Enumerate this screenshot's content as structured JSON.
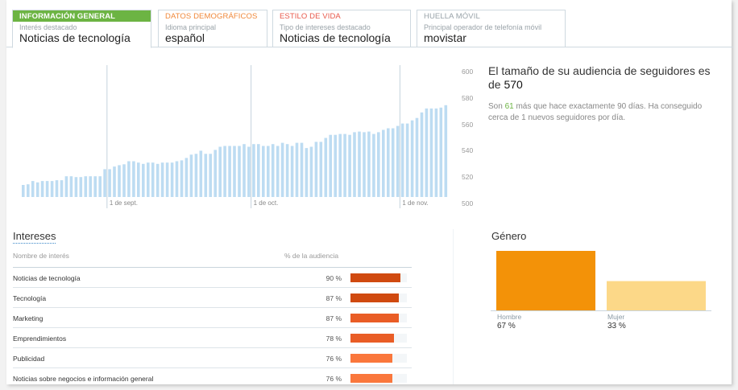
{
  "tabs": [
    {
      "header": "INFORMACIÓN GENERAL",
      "sub": "Interés destacado",
      "value": "Noticias de tecnología",
      "color": "#ffffff"
    },
    {
      "header": "DATOS DEMOGRÁFICOS",
      "sub": "Idioma principal",
      "value": "español",
      "color": "#f0883a"
    },
    {
      "header": "ESTILO DE VIDA",
      "sub": "Tipo de intereses destacado",
      "value": "Noticias de tecnología",
      "color": "#e8584a"
    },
    {
      "header": "HUELLA MÓVIL",
      "sub": "Principal operador de telefonía móvil",
      "value": "movistar",
      "color": "#99a3a9"
    }
  ],
  "followers": {
    "title": "El tamaño de su audiencia de seguidores es de ",
    "count": "570",
    "sub_pre": "Son ",
    "sub_num": "61",
    "sub_post": " más que hace exactamente 90 días. Ha conseguido cerca de 1 nuevos seguidores por día."
  },
  "chart_data": [
    {
      "type": "bar",
      "title": "",
      "ylim": [
        500,
        600
      ],
      "yticks": [
        "600",
        "580",
        "560",
        "540",
        "520",
        "500"
      ],
      "xticks": [
        {
          "label": "1 de sept.",
          "index": 17
        },
        {
          "label": "1 de oct.",
          "index": 47
        },
        {
          "label": "1 de nov.",
          "index": 78
        }
      ],
      "color": "#bddcf2",
      "values": [
        514,
        514.5,
        517,
        516,
        517,
        517,
        517,
        517.6,
        517.6,
        520.6,
        520.6,
        520,
        520,
        520.6,
        520.6,
        520.6,
        520.6,
        526,
        526,
        528,
        529,
        529.7,
        532,
        532,
        531,
        530,
        531,
        531,
        530,
        531,
        531,
        531,
        532,
        532.7,
        534.5,
        537,
        537.6,
        540,
        537.6,
        537.6,
        540.6,
        543,
        543.6,
        543.6,
        543.6,
        543.6,
        545,
        543,
        545,
        545,
        543.6,
        543.6,
        545,
        543.6,
        546,
        545,
        543.6,
        546,
        546,
        542,
        543,
        546.7,
        546.7,
        549.7,
        552,
        552,
        552.7,
        552.7,
        552,
        554,
        554.5,
        554,
        554.5,
        552.7,
        554,
        555.8,
        557,
        557,
        558.8,
        560.6,
        560.6,
        563,
        564.8,
        569,
        572,
        572,
        572,
        572.7,
        574.5
      ]
    },
    {
      "type": "bar",
      "title": "Género",
      "categories": [
        "Hombre",
        "Mujer"
      ],
      "values": [
        67,
        33
      ],
      "labels": [
        "67 %",
        "33 %"
      ],
      "colors": [
        "#f39208",
        "#fcd888"
      ]
    }
  ],
  "interests": {
    "title": "Intereses",
    "col_name": "Nombre de interés",
    "col_pct": "% de la audiencia",
    "rows": [
      {
        "name": "Noticias de tecnología",
        "pct": "90 %",
        "value": 90,
        "color": "#d04a10"
      },
      {
        "name": "Tecnología",
        "pct": "87 %",
        "value": 87,
        "color": "#d04a10"
      },
      {
        "name": "Marketing",
        "pct": "87 %",
        "value": 87,
        "color": "#e95d26"
      },
      {
        "name": "Emprendimientos",
        "pct": "78 %",
        "value": 78,
        "color": "#e95d26"
      },
      {
        "name": "Publicidad",
        "pct": "76 %",
        "value": 76,
        "color": "#fa773c"
      },
      {
        "name": "Noticias sobre negocios e información general",
        "pct": "76 %",
        "value": 76,
        "color": "#fa773c"
      }
    ]
  }
}
